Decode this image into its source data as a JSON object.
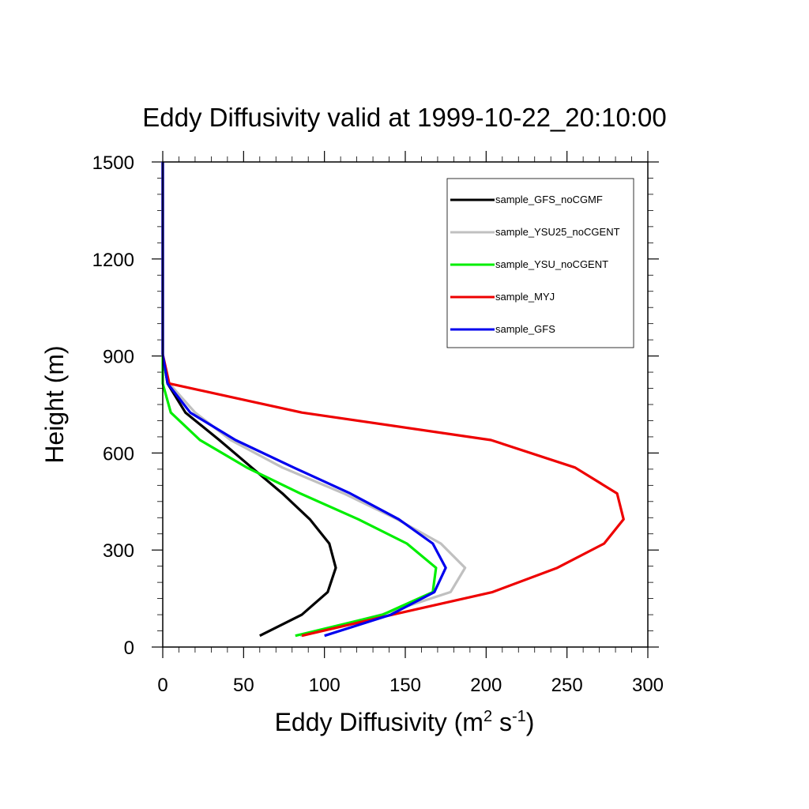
{
  "chart_data": {
    "type": "line",
    "title": "Eddy Diffusivity valid at 1999-10-22_20:10:00",
    "xlabel": {
      "base": "Eddy Diffusivity (m",
      "sup1": "2",
      "mid": " s",
      "sup2": "-1",
      "end": ")"
    },
    "ylabel": "Height (m)",
    "xlim": [
      0,
      300
    ],
    "ylim": [
      0,
      1500
    ],
    "xticks": [
      0,
      50,
      100,
      150,
      200,
      250,
      300
    ],
    "yticks": [
      0,
      300,
      600,
      900,
      1200,
      1500
    ],
    "x_minor_step": 10,
    "y_minor_step": 50,
    "grid": false,
    "legend_position": "top-right",
    "series": [
      {
        "name": "sample_GFS_noCGMF",
        "color": "#000000",
        "points": [
          [
            60,
            35
          ],
          [
            86,
            100
          ],
          [
            102,
            170
          ],
          [
            107,
            245
          ],
          [
            103,
            320
          ],
          [
            91,
            395
          ],
          [
            74,
            475
          ],
          [
            55,
            555
          ],
          [
            35,
            640
          ],
          [
            14,
            725
          ],
          [
            3,
            815
          ],
          [
            0,
            905
          ],
          [
            0,
            1000
          ],
          [
            0,
            1100
          ],
          [
            0,
            1200
          ],
          [
            0,
            1300
          ],
          [
            0,
            1400
          ],
          [
            0,
            1500
          ]
        ]
      },
      {
        "name": "sample_YSU25_noCGENT",
        "color": "#c0c0c0",
        "points": [
          [
            85,
            35
          ],
          [
            135,
            100
          ],
          [
            178,
            170
          ],
          [
            187,
            245
          ],
          [
            172,
            320
          ],
          [
            145,
            395
          ],
          [
            112,
            475
          ],
          [
            74,
            555
          ],
          [
            42,
            640
          ],
          [
            20,
            725
          ],
          [
            4,
            815
          ],
          [
            0,
            905
          ],
          [
            0,
            1000
          ],
          [
            0,
            1100
          ],
          [
            0,
            1200
          ],
          [
            0,
            1300
          ],
          [
            0,
            1400
          ],
          [
            0,
            1500
          ]
        ]
      },
      {
        "name": "sample_YSU_noCGENT",
        "color": "#00ee00",
        "points": [
          [
            82,
            35
          ],
          [
            136,
            100
          ],
          [
            167,
            170
          ],
          [
            169,
            245
          ],
          [
            151,
            320
          ],
          [
            121,
            395
          ],
          [
            85,
            475
          ],
          [
            52,
            555
          ],
          [
            23,
            640
          ],
          [
            5,
            725
          ],
          [
            0,
            815
          ],
          [
            0,
            905
          ],
          [
            0,
            1000
          ],
          [
            0,
            1100
          ],
          [
            0,
            1200
          ],
          [
            0,
            1300
          ],
          [
            0,
            1400
          ],
          [
            0,
            1500
          ]
        ]
      },
      {
        "name": "sample_MYJ",
        "color": "#ee0000",
        "points": [
          [
            86,
            35
          ],
          [
            142,
            100
          ],
          [
            204,
            170
          ],
          [
            244,
            245
          ],
          [
            273,
            320
          ],
          [
            285,
            395
          ],
          [
            281,
            475
          ],
          [
            255,
            555
          ],
          [
            203,
            640
          ],
          [
            86,
            725
          ],
          [
            4,
            815
          ],
          [
            0,
            905
          ],
          [
            0,
            1000
          ],
          [
            0,
            1100
          ],
          [
            0,
            1200
          ],
          [
            0,
            1300
          ],
          [
            0,
            1400
          ],
          [
            0,
            1500
          ]
        ]
      },
      {
        "name": "sample_GFS",
        "color": "#0000ee",
        "points": [
          [
            100,
            35
          ],
          [
            141,
            100
          ],
          [
            168,
            170
          ],
          [
            175,
            245
          ],
          [
            167,
            320
          ],
          [
            146,
            395
          ],
          [
            116,
            475
          ],
          [
            81,
            555
          ],
          [
            45,
            640
          ],
          [
            17,
            725
          ],
          [
            3,
            815
          ],
          [
            0,
            905
          ],
          [
            0,
            1000
          ],
          [
            0,
            1100
          ],
          [
            0,
            1200
          ],
          [
            0,
            1300
          ],
          [
            0,
            1400
          ],
          [
            0,
            1500
          ]
        ]
      }
    ]
  }
}
